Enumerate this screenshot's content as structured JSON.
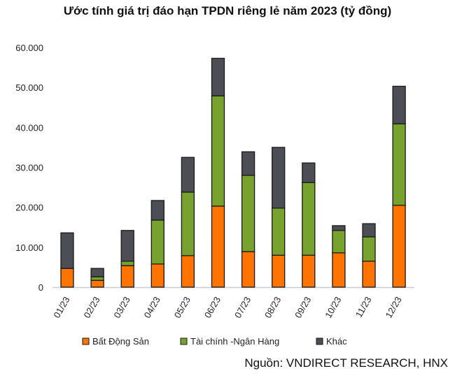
{
  "chart_data": {
    "type": "bar",
    "stacked": true,
    "title": "Ước tính giá trị đáo hạn TPDN riêng lẻ năm 2023 (tỷ đồng)",
    "source": "Nguồn: VNDIRECT RESEARCH, HNX",
    "categories": [
      "01/23",
      "02/23",
      "03/23",
      "04/23",
      "05/23",
      "06/23",
      "07/23",
      "08/23",
      "09/23",
      "10/23",
      "11/23",
      "12/23"
    ],
    "series": [
      {
        "name": "Bất Động Sản",
        "color": "#ff7300",
        "values": [
          4700,
          1700,
          5400,
          5800,
          7900,
          20300,
          8900,
          8000,
          8000,
          8600,
          6500,
          20500
        ]
      },
      {
        "name": "Tài chính -Ngân Hàng",
        "color": "#77a22d",
        "values": [
          0,
          900,
          1100,
          11000,
          15900,
          27600,
          19100,
          11800,
          18200,
          5600,
          6100,
          20400
        ]
      },
      {
        "name": "Khác",
        "color": "#4d4d55",
        "values": [
          8900,
          2100,
          7700,
          4900,
          8700,
          9400,
          5900,
          15200,
          4900,
          1200,
          3300,
          9400
        ]
      }
    ],
    "ylim": [
      0,
      60000
    ],
    "yticks": [
      "0",
      "10.000",
      "20.000",
      "30.000",
      "40.000",
      "50.000",
      "60.000"
    ],
    "grid": false,
    "legend": "bottom"
  }
}
